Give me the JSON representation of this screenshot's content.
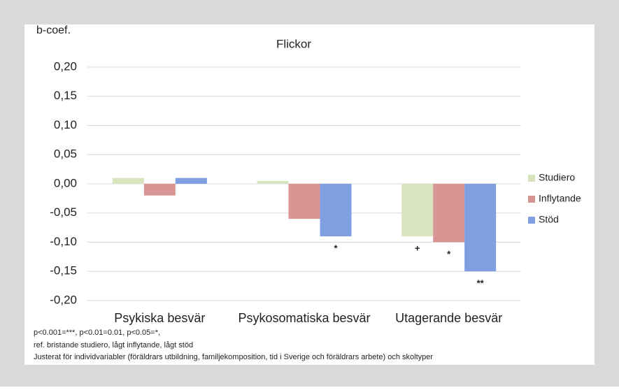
{
  "chart_data": {
    "type": "bar",
    "title": "Flickor",
    "y_label": "b-coef.",
    "categories": [
      "Psykiska besvär",
      "Psykosomatiska besvär",
      "Utagerande besvär"
    ],
    "series": [
      {
        "name": "Studiero",
        "color": "#d7e4bd",
        "values": [
          0.01,
          0.005,
          -0.09
        ],
        "significance": [
          null,
          null,
          "+"
        ]
      },
      {
        "name": "Inflytande",
        "color": "#d99594",
        "values": [
          -0.02,
          -0.06,
          -0.1
        ],
        "significance": [
          null,
          null,
          "*"
        ]
      },
      {
        "name": "Stöd",
        "color": "#7f9fe0",
        "values": [
          0.01,
          -0.09,
          -0.15
        ],
        "significance": [
          null,
          "*",
          "**"
        ]
      }
    ],
    "ylim": [
      -0.2,
      0.2
    ],
    "yticks": [
      {
        "value": 0.2,
        "label": "0,20"
      },
      {
        "value": 0.15,
        "label": "0,15"
      },
      {
        "value": 0.1,
        "label": "0,10"
      },
      {
        "value": 0.05,
        "label": "0,05"
      },
      {
        "value": 0,
        "label": "0,00"
      },
      {
        "value": -0.05,
        "label": "-0,05"
      },
      {
        "value": -0.1,
        "label": "-0,10"
      },
      {
        "value": -0.15,
        "label": "-0,15"
      },
      {
        "value": -0.2,
        "label": "-0,20"
      }
    ],
    "grid": true,
    "legend": "right",
    "notes": [
      "p<0.001=***, p<0.01=0.01, p<0.05=*,",
      "ref. bristande studiero, lågt inflytande, lågt stöd",
      "Justerat för individvariabler (föräldrars utbildning, familjekomposition, tid i Sverige och föräldrars arbete) och skoltyper"
    ]
  }
}
